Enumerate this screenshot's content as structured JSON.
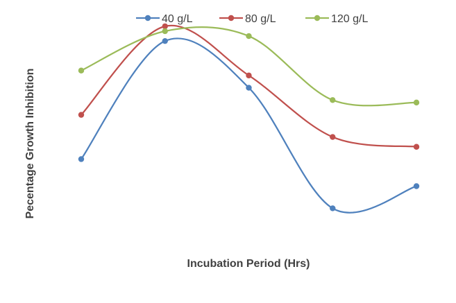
{
  "chart_data": {
    "type": "line",
    "title": "",
    "xlabel": "Incubation Period (Hrs)",
    "ylabel": "Pecentage Growth Inhibition",
    "categories": [
      "",
      "",
      "",
      "",
      ""
    ],
    "ylim": [
      0,
      100
    ],
    "grid": false,
    "legend_position": "top",
    "smooth": true,
    "series": [
      {
        "name": "40 g/L",
        "color": "#4F81BD",
        "values": [
          40,
          88,
          69,
          20,
          29
        ]
      },
      {
        "name": "80 g/L",
        "color": "#C0504D",
        "values": [
          58,
          94,
          74,
          49,
          45
        ]
      },
      {
        "name": "120 g/L",
        "color": "#9BBB59",
        "values": [
          76,
          92,
          90,
          64,
          63
        ]
      }
    ]
  }
}
